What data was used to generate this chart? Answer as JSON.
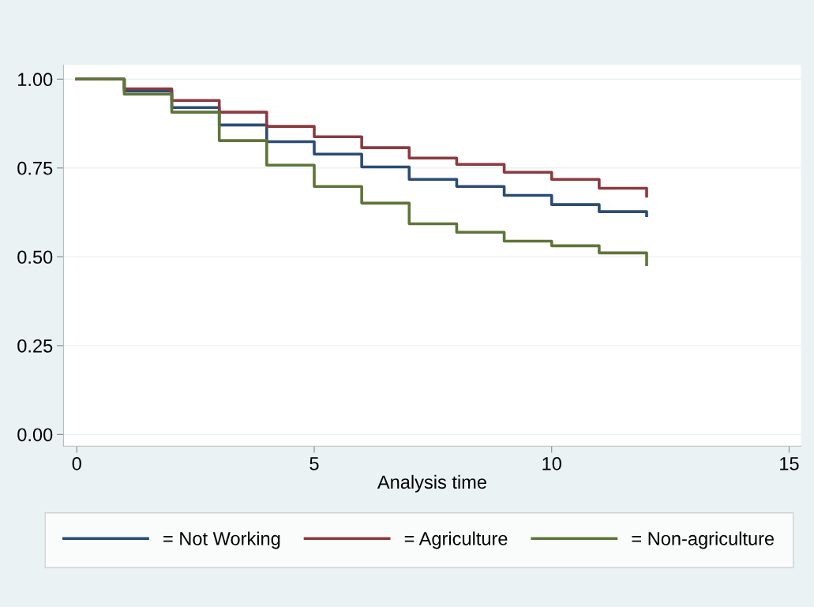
{
  "chart_data": {
    "type": "step",
    "xlabel": "Analysis time",
    "xlim": [
      -0.28,
      15.25
    ],
    "xticks": [
      0,
      5,
      10,
      15
    ],
    "ylim": [
      -0.033,
      1.04
    ],
    "yticks": [
      {
        "value": 0,
        "label": "0.00"
      },
      {
        "value": 0.25,
        "label": "0.25"
      },
      {
        "value": 0.5,
        "label": "0.50"
      },
      {
        "value": 0.75,
        "label": "0.75"
      },
      {
        "value": 1,
        "label": "1.00"
      }
    ],
    "grid": "y",
    "legend": "bottom",
    "marker": "none",
    "line_style": "solid",
    "series": [
      {
        "name": "= Not Working",
        "color": "#2b4c75",
        "x": [
          0,
          1,
          2,
          3,
          4,
          5,
          6,
          7,
          8,
          9,
          10,
          11,
          12,
          12
        ],
        "values": [
          1.0,
          0.967,
          0.92,
          0.871,
          0.824,
          0.789,
          0.753,
          0.718,
          0.698,
          0.673,
          0.647,
          0.627,
          0.627,
          0.616
        ]
      },
      {
        "name": "= Agriculture",
        "color": "#8b3a3f",
        "x": [
          0,
          1,
          2,
          3,
          4,
          5,
          6,
          7,
          8,
          9,
          10,
          11,
          12,
          12
        ],
        "values": [
          1.0,
          0.973,
          0.94,
          0.907,
          0.867,
          0.838,
          0.807,
          0.778,
          0.76,
          0.738,
          0.718,
          0.693,
          0.693,
          0.671
        ]
      },
      {
        "name": "= Non-agriculture",
        "color": "#5f7538",
        "x": [
          0,
          1,
          2,
          3,
          4,
          5,
          6,
          7,
          8,
          9,
          10,
          11,
          12,
          12
        ],
        "values": [
          1.0,
          0.958,
          0.907,
          0.827,
          0.758,
          0.698,
          0.651,
          0.593,
          0.569,
          0.544,
          0.531,
          0.511,
          0.511,
          0.478
        ]
      }
    ]
  }
}
